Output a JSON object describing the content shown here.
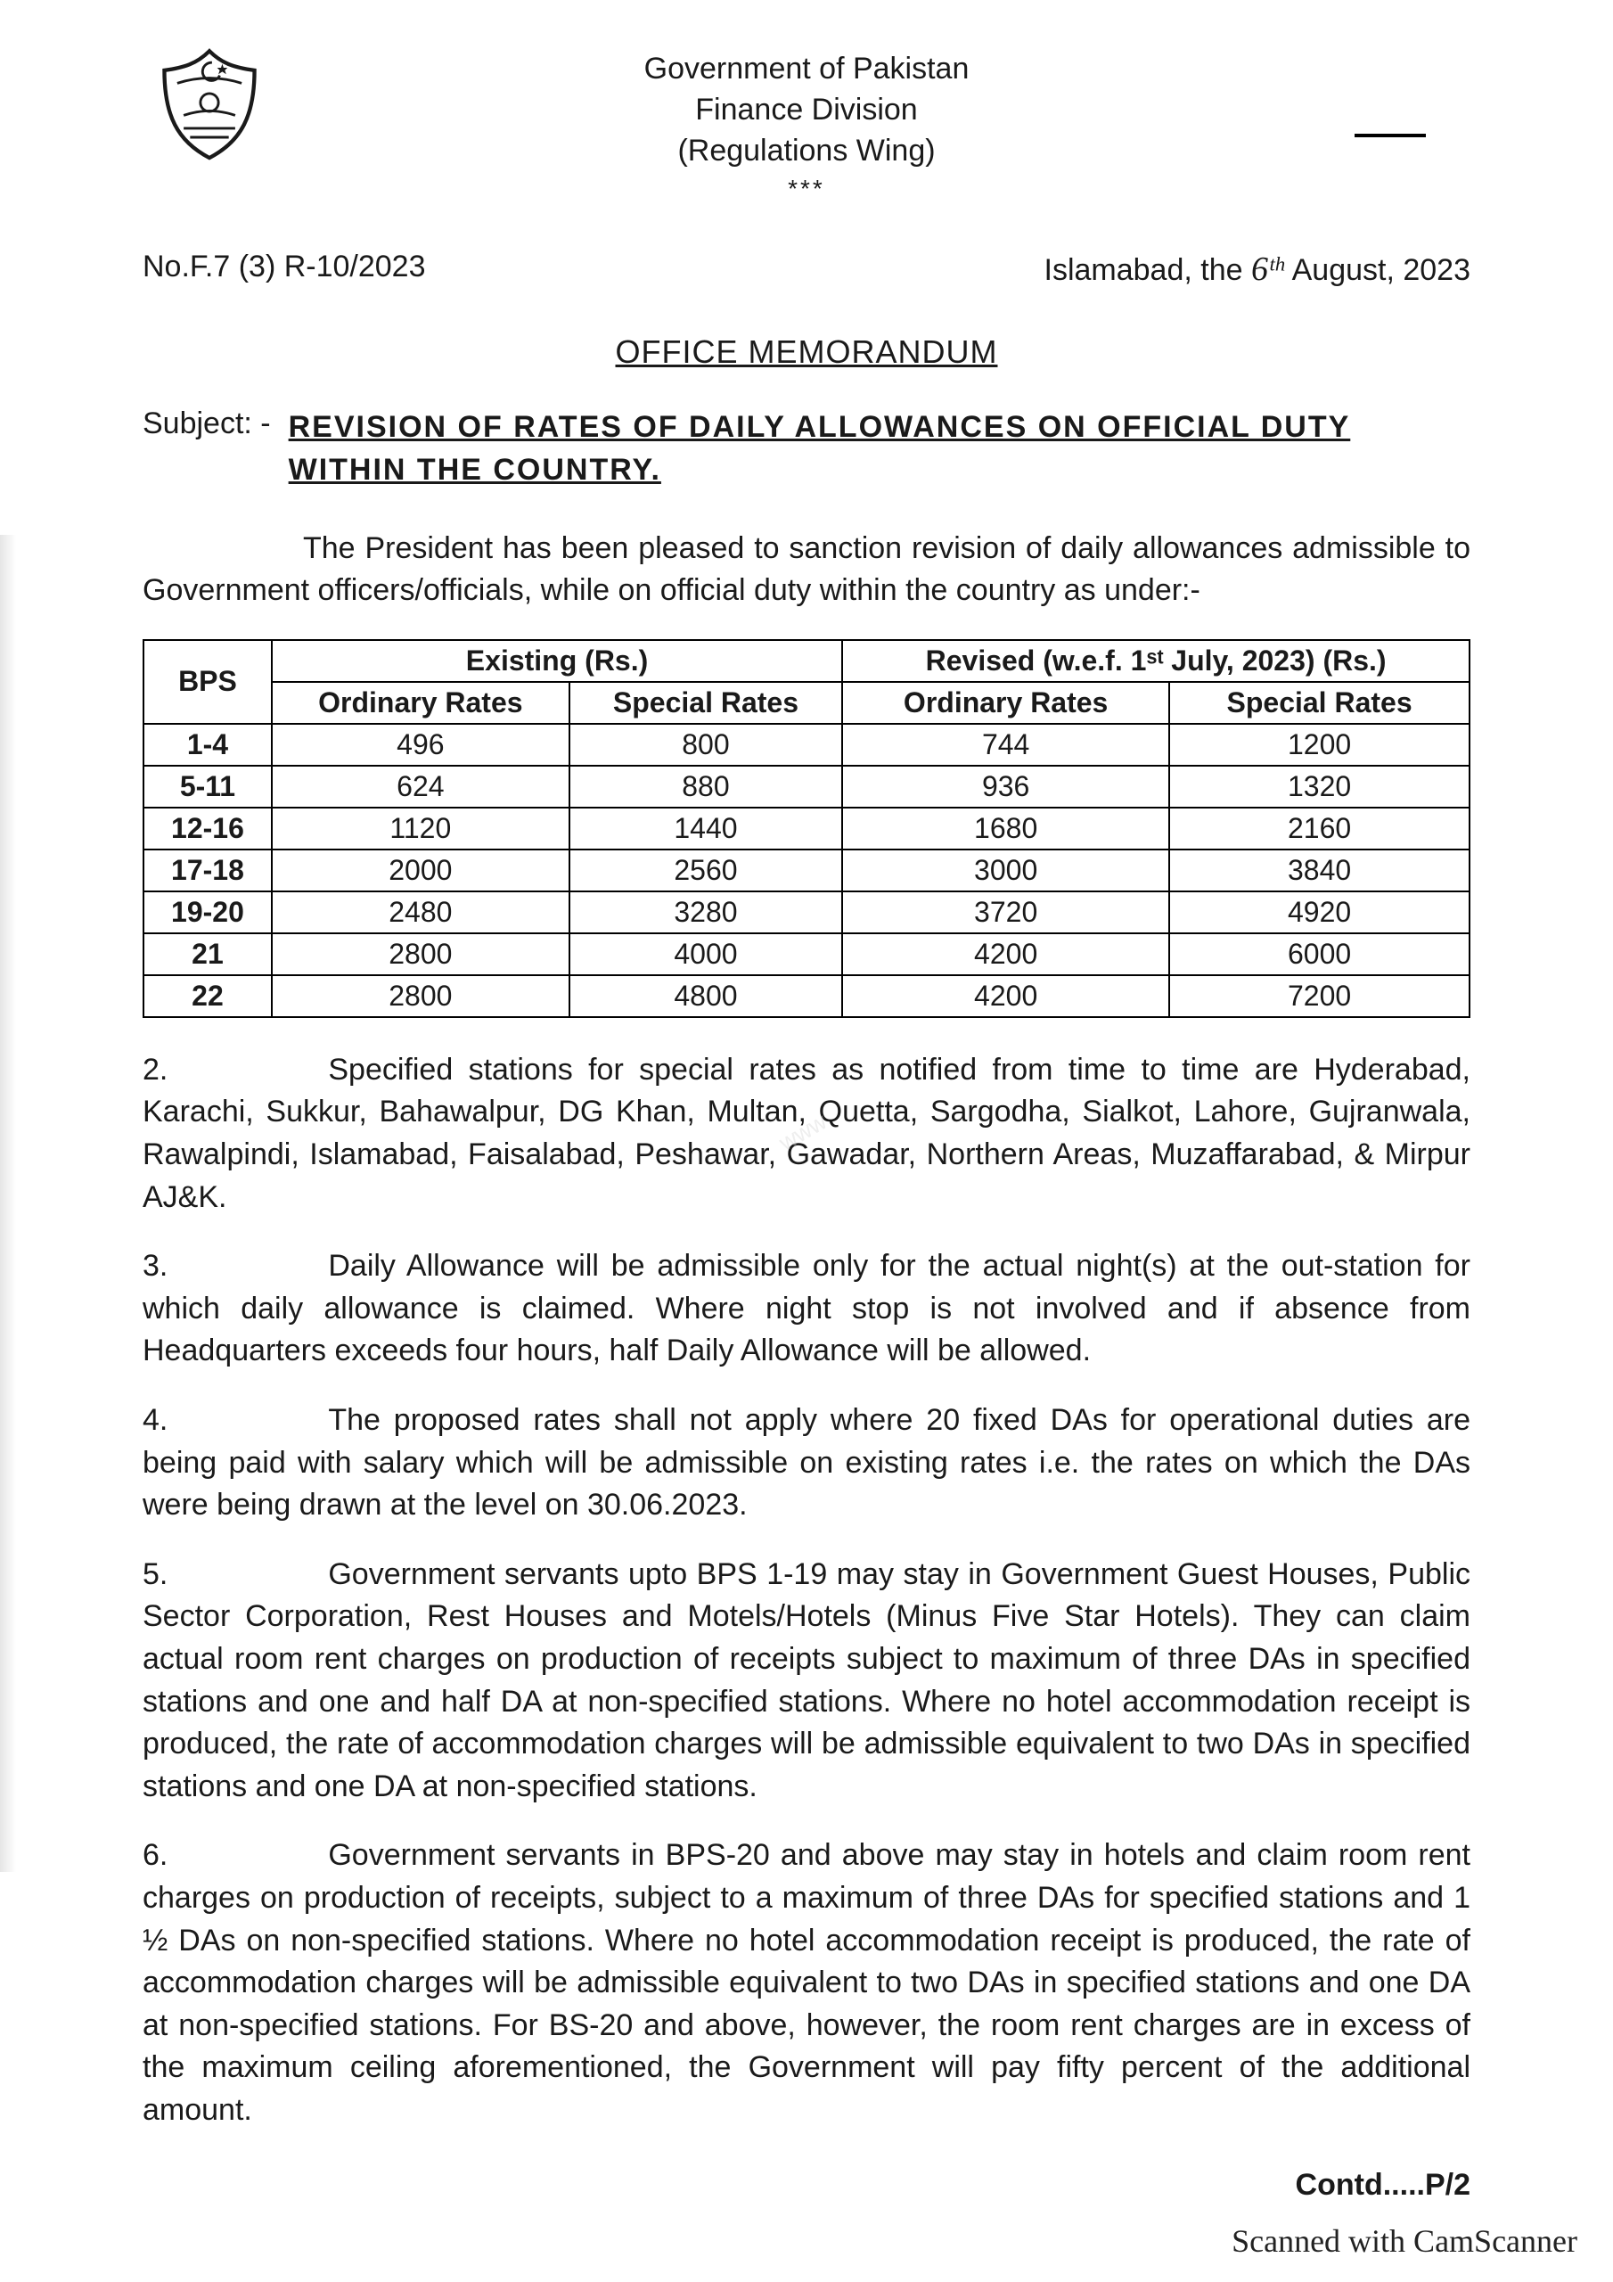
{
  "header": {
    "line1": "Government of Pakistan",
    "line2": "Finance Division",
    "line3": "(Regulations Wing)",
    "stars": "***"
  },
  "ref": {
    "number": "No.F.7 (3) R-10/2023",
    "place": "Islamabad, the",
    "hand_date": "6ᵗʰ",
    "month": "August, 2023"
  },
  "memo_title": "OFFICE MEMORANDUM",
  "subject": {
    "label": "Subject: -",
    "text": "REVISION OF RATES OF DAILY ALLOWANCES ON OFFICIAL DUTY WITHIN THE COUNTRY."
  },
  "para1": "The President has been pleased to sanction revision of daily allowances admissible to Government officers/officials, while on official duty within the country as under:-",
  "table": {
    "col_bps": "BPS",
    "col_existing": "Existing (Rs.)",
    "col_revised": "Revised (w.e.f. 1ˢᵗ July, 2023) (Rs.)",
    "col_ord": "Ordinary Rates",
    "col_spec": "Special Rates",
    "rows": [
      {
        "bps": "1-4",
        "eo": "496",
        "es": "800",
        "ro": "744",
        "rs": "1200"
      },
      {
        "bps": "5-11",
        "eo": "624",
        "es": "880",
        "ro": "936",
        "rs": "1320"
      },
      {
        "bps": "12-16",
        "eo": "1120",
        "es": "1440",
        "ro": "1680",
        "rs": "2160"
      },
      {
        "bps": "17-18",
        "eo": "2000",
        "es": "2560",
        "ro": "3000",
        "rs": "3840"
      },
      {
        "bps": "19-20",
        "eo": "2480",
        "es": "3280",
        "ro": "3720",
        "rs": "4920"
      },
      {
        "bps": "21",
        "eo": "2800",
        "es": "4000",
        "ro": "4200",
        "rs": "6000"
      },
      {
        "bps": "22",
        "eo": "2800",
        "es": "4800",
        "ro": "4200",
        "rs": "7200"
      }
    ]
  },
  "para2": "Specified stations for special rates as notified from time to time are Hyderabad, Karachi, Sukkur, Bahawalpur, DG Khan, Multan, Quetta, Sargodha, Sialkot, Lahore, Gujranwala, Rawalpindi, Islamabad, Faisalabad, Peshawar, Gawadar, Northern Areas, Muzaffarabad, & Mirpur AJ&K.",
  "para3": "Daily Allowance will be admissible only for the actual night(s) at the out-station for which daily allowance is claimed. Where night stop is not involved and if absence from Headquarters exceeds four hours, half Daily Allowance will be allowed.",
  "para4": "The proposed rates shall not apply where 20 fixed DAs for operational duties are being paid with salary which will be admissible on existing rates i.e. the rates on which the DAs were being drawn at the level on 30.06.2023.",
  "para5": "Government servants upto BPS 1-19 may stay in Government Guest Houses, Public Sector Corporation, Rest Houses and Motels/Hotels (Minus Five Star Hotels). They can claim actual room rent charges on production of receipts subject to maximum of three DAs in specified stations and one and half DA at non-specified stations. Where no hotel accommodation receipt is produced, the rate of accommodation charges will be admissible equivalent to two DAs in specified stations and one DA at non-specified stations.",
  "para6": "Government servants in BPS-20 and above may stay in hotels and claim room rent charges on production of receipts, subject to a maximum of three DAs for specified stations and 1 ½ DAs on non-specified stations. Where no hotel accommodation receipt is produced, the rate of accommodation charges will be admissible equivalent to two DAs in specified stations and one DA at non-specified stations. For BS-20 and above, however, the room rent charges are in excess of the maximum ceiling aforementioned, the Government will pay fifty percent of the additional amount.",
  "num2": "2.",
  "num3": "3.",
  "num4": "4.",
  "num5": "5.",
  "num6": "6.",
  "contd": "Contd.....P/2",
  "scanned": "Scanned with CamScanner",
  "watermark": "www"
}
